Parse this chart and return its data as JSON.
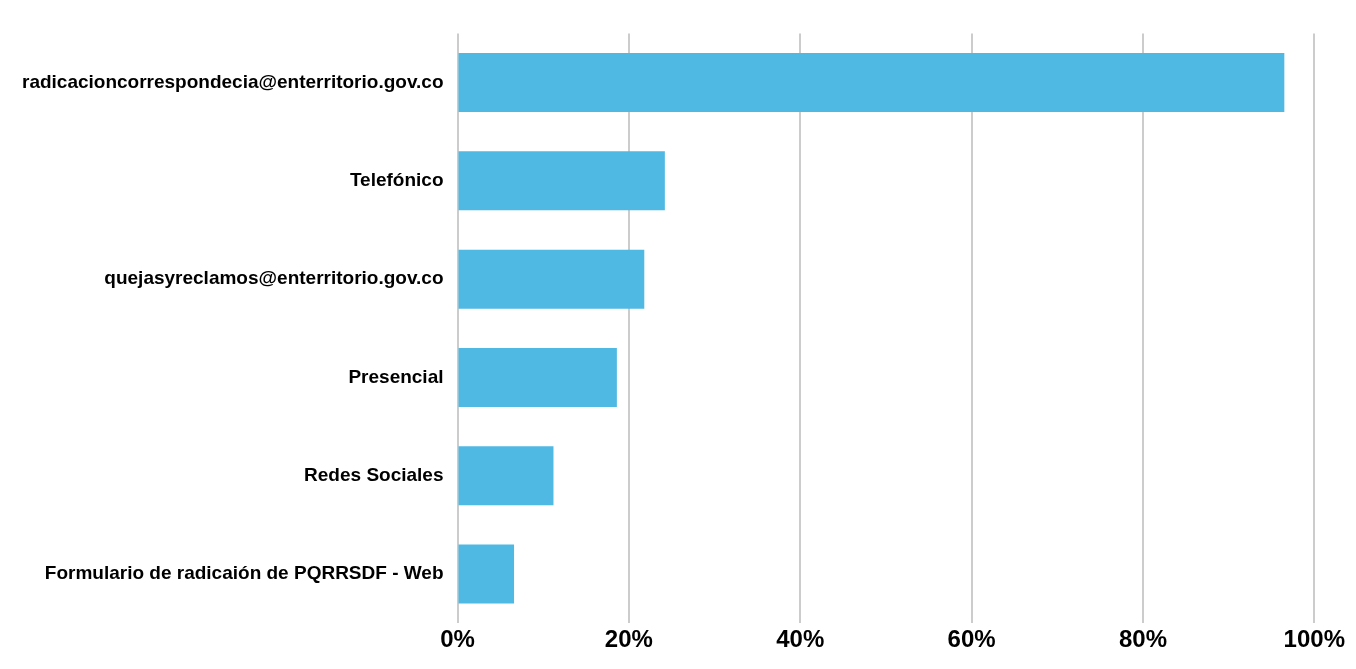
{
  "chart_data": {
    "type": "bar",
    "orientation": "horizontal",
    "categories": [
      "radicacioncorrespondecia@enterritorio.gov.co",
      "Telefónico",
      "quejasyreclamos@enterritorio.gov.co",
      "Presencial",
      "Redes Sociales",
      "Formulario de radicaión de PQRRSDF - Web"
    ],
    "values": [
      96.5,
      24.2,
      21.8,
      18.6,
      11.2,
      6.6
    ],
    "color": "#4fb9e3",
    "xlim": [
      0,
      100
    ],
    "xticks": [
      {
        "value": 0,
        "label": "0%"
      },
      {
        "value": 20,
        "label": "20%"
      },
      {
        "value": 40,
        "label": "40%"
      },
      {
        "value": 60,
        "label": "60%"
      },
      {
        "value": 80,
        "label": "80%"
      },
      {
        "value": 100,
        "label": "100%"
      }
    ],
    "grid": "x"
  }
}
